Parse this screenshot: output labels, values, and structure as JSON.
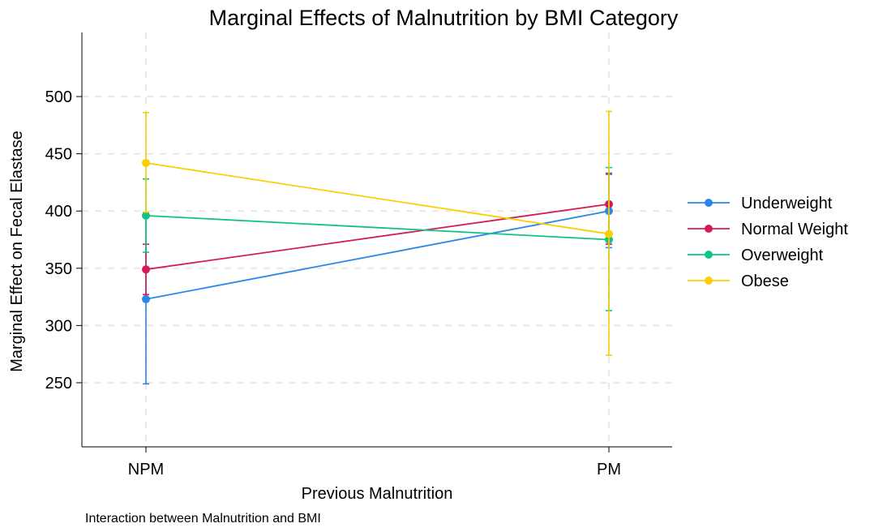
{
  "chart_data": {
    "type": "line",
    "title": "Marginal Effects of Malnutrition by BMI Category",
    "xlabel": "Previous Malnutrition",
    "ylabel": "Marginal Effect on Fecal Elastase",
    "note": "Interaction between Malnutrition and BMI",
    "categories": [
      "NPM",
      "PM"
    ],
    "yticks": [
      250,
      300,
      350,
      400,
      450,
      500
    ],
    "ylim": [
      194,
      556
    ],
    "grid": true,
    "legend_position": "right",
    "series": [
      {
        "name": "Underweight",
        "color": "#2a86e8",
        "values": [
          323,
          400
        ],
        "ci_low": [
          249,
          368
        ],
        "ci_high": [
          398,
          432
        ]
      },
      {
        "name": "Normal Weight",
        "color": "#d31b57",
        "values": [
          349,
          406
        ],
        "ci_low": [
          327,
          371
        ],
        "ci_high": [
          371,
          433
        ]
      },
      {
        "name": "Overweight",
        "color": "#12c386",
        "values": [
          396,
          375
        ],
        "ci_low": [
          364,
          313
        ],
        "ci_high": [
          428,
          438
        ]
      },
      {
        "name": "Obese",
        "color": "#f8d005",
        "values": [
          442,
          380
        ],
        "ci_low": [
          399,
          274
        ],
        "ci_high": [
          486,
          487
        ]
      }
    ]
  }
}
